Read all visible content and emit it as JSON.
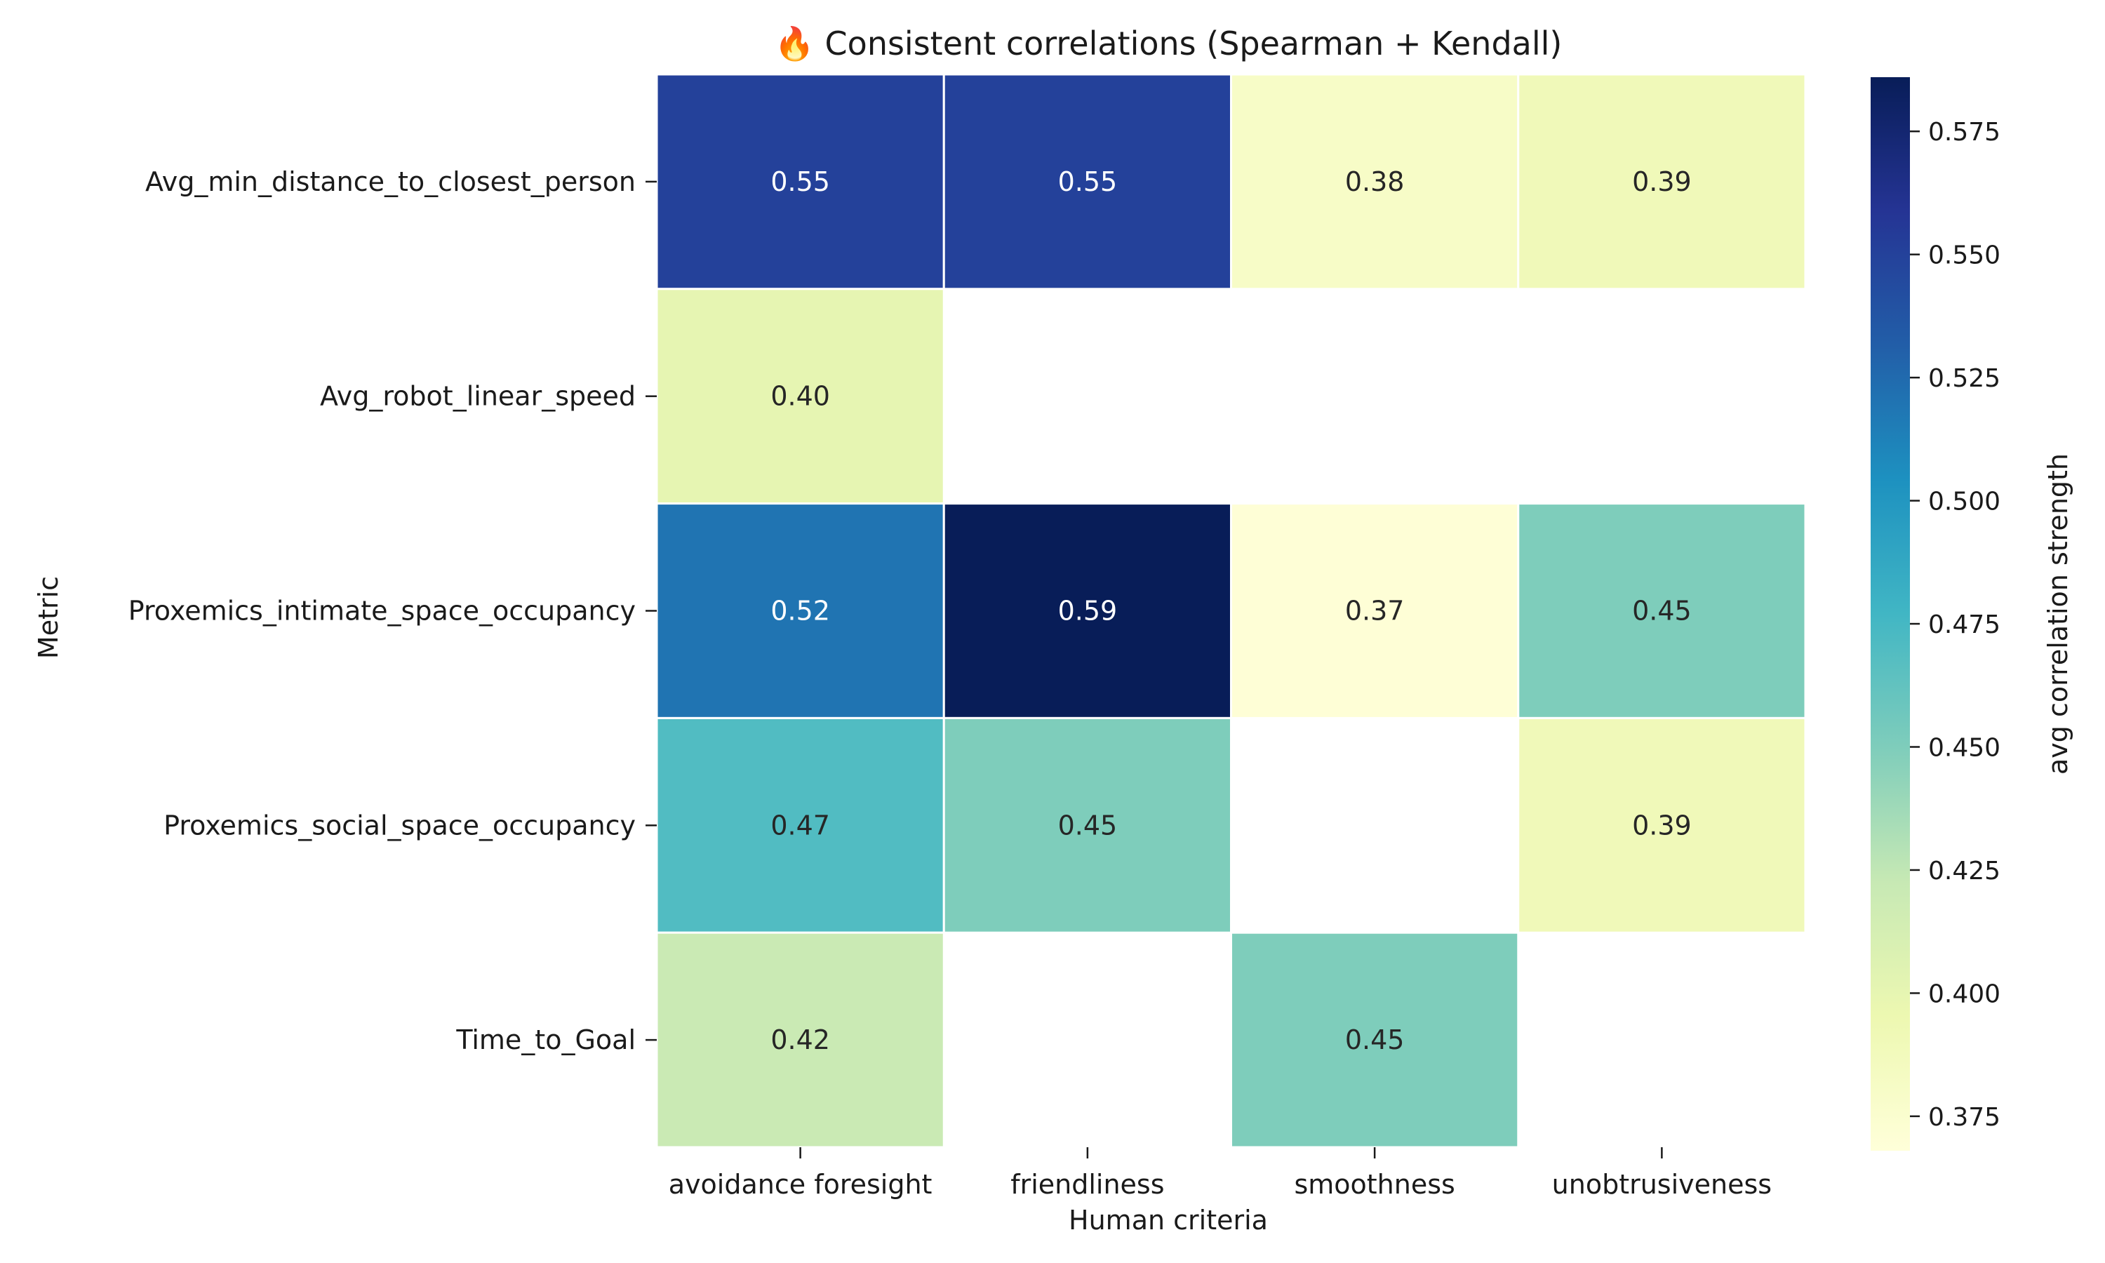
{
  "chart_data": {
    "type": "heatmap",
    "title": "🔥 Consistent correlations (Spearman + Kendall)",
    "xlabel": "Human criteria",
    "ylabel": "Metric",
    "colorbar_label": "avg correlation strength",
    "colormap": "YlGnBu",
    "columns": [
      "avoidance foresight",
      "friendliness",
      "smoothness",
      "unobtrusiveness"
    ],
    "rows": [
      "Avg_min_distance_to_closest_person",
      "Avg_robot_linear_speed",
      "Proxemics_intimate_space_occupancy",
      "Proxemics_social_space_occupancy",
      "Time_to_Goal"
    ],
    "values": [
      [
        0.55,
        0.55,
        0.38,
        0.39
      ],
      [
        0.4,
        null,
        null,
        null
      ],
      [
        0.52,
        0.59,
        0.37,
        0.45
      ],
      [
        0.47,
        0.45,
        null,
        0.39
      ],
      [
        0.42,
        null,
        0.45,
        null
      ]
    ],
    "cell_labels": [
      [
        "0.55",
        "0.55",
        "0.38",
        "0.39"
      ],
      [
        "0.40",
        "",
        "",
        ""
      ],
      [
        "0.52",
        "0.59",
        "0.37",
        "0.45"
      ],
      [
        "0.47",
        "0.45",
        "",
        "0.39"
      ],
      [
        "0.42",
        "",
        "0.45",
        ""
      ]
    ],
    "color_range": [
      0.368,
      0.586
    ],
    "colorbar_ticks": [
      0.375,
      0.4,
      0.425,
      0.45,
      0.475,
      0.5,
      0.525,
      0.55,
      0.575
    ],
    "colorbar_tick_labels": [
      "0.375",
      "0.400",
      "0.425",
      "0.450",
      "0.475",
      "0.500",
      "0.525",
      "0.550",
      "0.575"
    ]
  }
}
